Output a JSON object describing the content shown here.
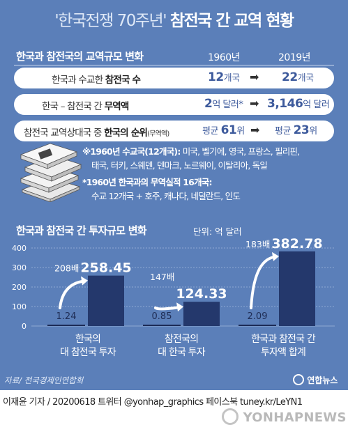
{
  "title": {
    "quoted": "'한국전쟁 70주년'",
    "main": "참전국 간 교역 현황"
  },
  "trade": {
    "header": "한국과 참전국의 교역규모 변화",
    "col1": "1960년",
    "col2": "2019년",
    "rows": [
      {
        "label_pre": "한국과 수교한 ",
        "label_bold": "참전국 수",
        "label_small": "",
        "v1_num": "12",
        "v1_unit": "개국",
        "v2_num": "22",
        "v2_unit": "개국"
      },
      {
        "label_pre": "한국 – 참전국 간 ",
        "label_bold": "무역액",
        "label_small": "",
        "v1_num": "2",
        "v1_unit": "억 달러*",
        "v2_num": "3,146",
        "v2_unit": "억 달러"
      },
      {
        "label_pre": "참전국 교역상대국 중 ",
        "label_bold": "한국의 순위",
        "label_small": "(무역액)",
        "v1_num": "61",
        "v1_unit": "위",
        "v1_pre": "평균 ",
        "v2_num": "23",
        "v2_unit": "위",
        "v2_pre": "평균 "
      }
    ],
    "arrow": "➡"
  },
  "notes": {
    "n1_bold": "※1960년 수교국(12개국):",
    "n1_text": " 미국, 벨기에, 영국, 프랑스, 필리핀,",
    "n1_line2": "태국, 터키, 스웨덴, 덴마크, 노르웨이, 이탈리아, 독일",
    "n2_bold": "*1960년 한국과의 무역실적 16개국:",
    "n2_line2": "수교 12개국 + 호주, 캐나다, 네덜란드, 인도"
  },
  "invest": {
    "header": "한국과 참전국 간 투자규모 변화",
    "unit": "단위: 억 달러"
  },
  "chart_data": {
    "type": "bar",
    "title": "한국과 참전국 간 투자규모 변화",
    "ylabel": "단위: 억 달러",
    "ylim": [
      0,
      400
    ],
    "yticks": [
      "0",
      "100",
      "200",
      "300",
      "400"
    ],
    "categories": [
      [
        "한국의",
        "대 참전국 투자"
      ],
      [
        "참전국의",
        "대 한국 투자"
      ],
      [
        "한국과 참전국 간",
        "투자액 합계"
      ]
    ],
    "series": [
      {
        "values": [
          1.24,
          0.85,
          2.09
        ],
        "labels": [
          "1.24",
          "0.85",
          "2.09"
        ]
      },
      {
        "values": [
          258.45,
          124.33,
          382.78
        ],
        "labels": [
          "258.45",
          "124.33",
          "382.78"
        ]
      }
    ],
    "multipliers": [
      "208배",
      "147배",
      "183배"
    ]
  },
  "source": "자료/ 전국경제인연합회",
  "logo": "연합뉴스",
  "footer": "이재윤 기자 / 20200618   트위터 @yonhap_graphics  페이스북 tuney.kr/LeYN1",
  "watermark": "YONHAPNEWS",
  "colors": {
    "background": "#5b7fb9",
    "bar_dark": "#24386c",
    "bar_small": "#1d2b56",
    "value_blue": "#3d5a9c"
  }
}
